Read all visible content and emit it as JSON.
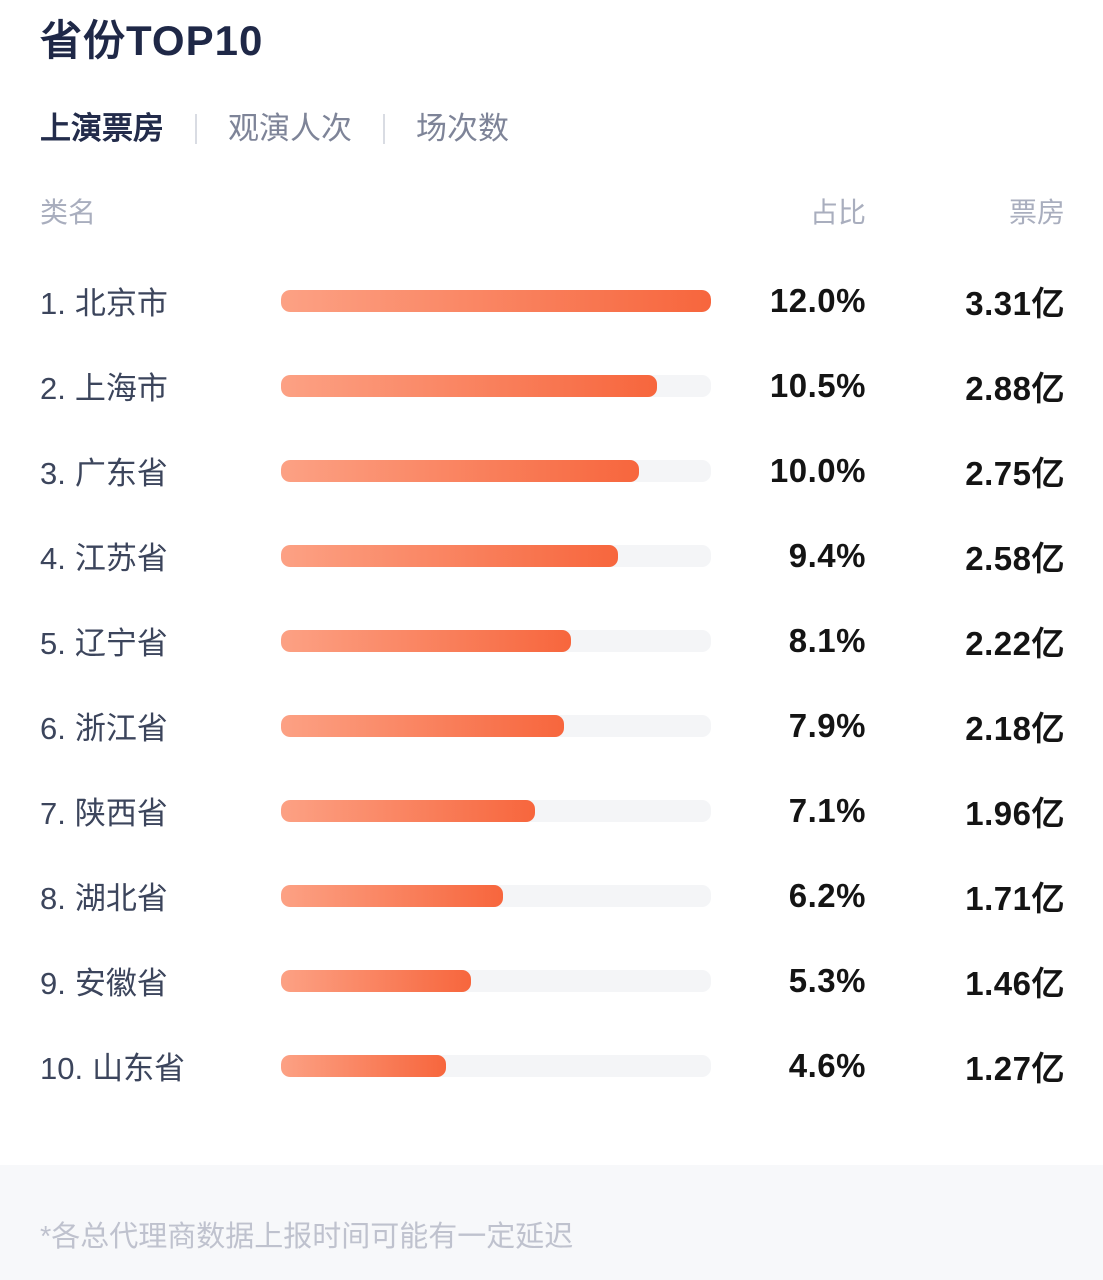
{
  "title": "省份TOP10",
  "tabs": [
    {
      "label": "上演票房",
      "active": true
    },
    {
      "label": "观演人次",
      "active": false
    },
    {
      "label": "场次数",
      "active": false
    }
  ],
  "table": {
    "headers": {
      "name": "类名",
      "share": "占比",
      "value": "票房"
    }
  },
  "chart_data": {
    "type": "bar",
    "orientation": "horizontal",
    "title": "省份TOP10",
    "legend": false,
    "grid": false,
    "bar_scale_max_pct": 12.0,
    "categories": [
      "北京市",
      "上海市",
      "广东省",
      "江苏省",
      "辽宁省",
      "浙江省",
      "陕西省",
      "湖北省",
      "安徽省",
      "山东省"
    ],
    "series": [
      {
        "name": "占比",
        "unit": "%",
        "values": [
          12.0,
          10.5,
          10.0,
          9.4,
          8.1,
          7.9,
          7.1,
          6.2,
          5.3,
          4.6
        ]
      },
      {
        "name": "票房",
        "unit": "亿",
        "values": [
          3.31,
          2.88,
          2.75,
          2.58,
          2.22,
          2.18,
          1.96,
          1.71,
          1.46,
          1.27
        ]
      }
    ],
    "rows": [
      {
        "rank": "1.",
        "name": "北京市",
        "share_pct": 12.0,
        "share_label": "12.0%",
        "boxoffice_label": "3.31亿"
      },
      {
        "rank": "2.",
        "name": "上海市",
        "share_pct": 10.5,
        "share_label": "10.5%",
        "boxoffice_label": "2.88亿"
      },
      {
        "rank": "3.",
        "name": "广东省",
        "share_pct": 10.0,
        "share_label": "10.0%",
        "boxoffice_label": "2.75亿"
      },
      {
        "rank": "4.",
        "name": "江苏省",
        "share_pct": 9.4,
        "share_label": "9.4%",
        "boxoffice_label": "2.58亿"
      },
      {
        "rank": "5.",
        "name": "辽宁省",
        "share_pct": 8.1,
        "share_label": "8.1%",
        "boxoffice_label": "2.22亿"
      },
      {
        "rank": "6.",
        "name": "浙江省",
        "share_pct": 7.9,
        "share_label": "7.9%",
        "boxoffice_label": "2.18亿"
      },
      {
        "rank": "7.",
        "name": "陕西省",
        "share_pct": 7.1,
        "share_label": "7.1%",
        "boxoffice_label": "1.96亿"
      },
      {
        "rank": "8.",
        "name": "湖北省",
        "share_pct": 6.2,
        "share_label": "6.2%",
        "boxoffice_label": "1.71亿"
      },
      {
        "rank": "9.",
        "name": "安徽省",
        "share_pct": 5.3,
        "share_label": "5.3%",
        "boxoffice_label": "1.46亿"
      },
      {
        "rank": "10.",
        "name": "山东省",
        "share_pct": 4.6,
        "share_label": "4.6%",
        "boxoffice_label": "1.27亿"
      }
    ]
  },
  "colors": {
    "bar_gradient_start": "#FCA184",
    "bar_gradient_end": "#F7663D",
    "bar_track": "#F4F5F7",
    "title": "#1F2847",
    "active_tab": "#232C4B",
    "inactive_tab": "#7E8498",
    "footer_background": "#F7F8FA"
  },
  "footer": {
    "note": "*各总代理商数据上报时间可能有一定延迟"
  }
}
